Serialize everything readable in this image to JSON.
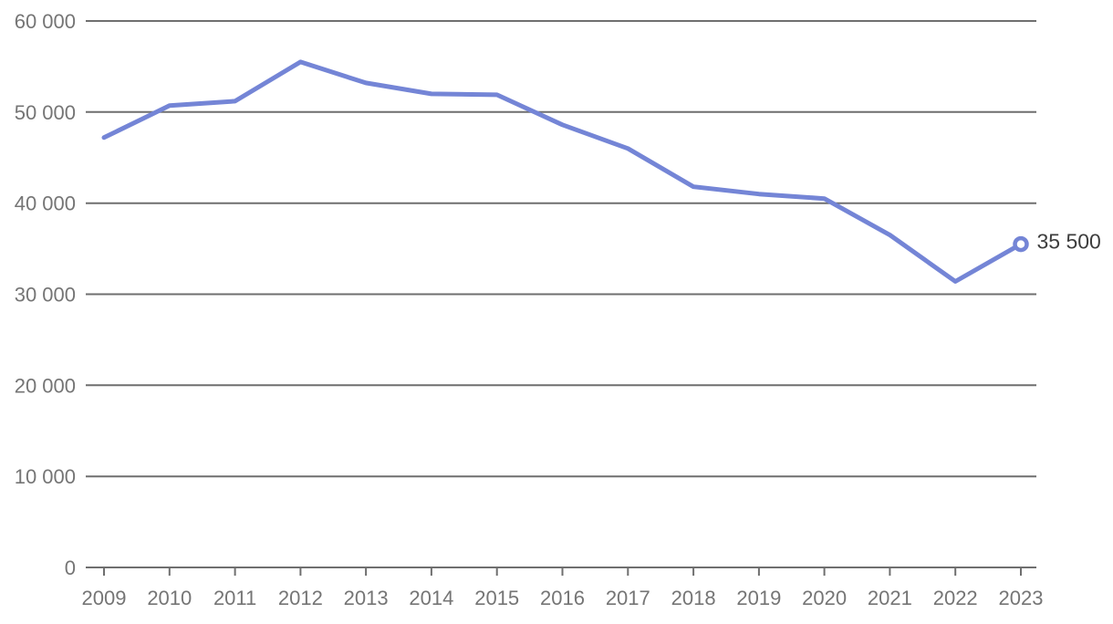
{
  "chart_data": {
    "type": "line",
    "title": "",
    "xlabel": "",
    "ylabel": "",
    "legend": "none",
    "grid": true,
    "categories": [
      "2009",
      "2010",
      "2011",
      "2012",
      "2013",
      "2014",
      "2015",
      "2016",
      "2017",
      "2018",
      "2019",
      "2020",
      "2021",
      "2022",
      "2023"
    ],
    "series": [
      {
        "name": "series-1",
        "values": [
          47200,
          50700,
          51200,
          55500,
          53200,
          52000,
          51900,
          48600,
          46000,
          41800,
          41000,
          40500,
          36500,
          31400,
          35500
        ]
      }
    ],
    "ylim": [
      0,
      60000
    ],
    "y_ticks": [
      {
        "value": 0,
        "label": "0"
      },
      {
        "value": 10000,
        "label": "10 000"
      },
      {
        "value": 20000,
        "label": "20 000"
      },
      {
        "value": 30000,
        "label": "30 000"
      },
      {
        "value": 40000,
        "label": "40 000"
      },
      {
        "value": 50000,
        "label": "50 000"
      },
      {
        "value": 60000,
        "label": "60 000"
      }
    ],
    "end_annotation": {
      "text": "35 500",
      "point_index": 14,
      "marker": "open-circle"
    },
    "colors": {
      "line": "#7485d6",
      "grid": "#6f6f6f",
      "axis_text": "#757575",
      "annotation_text": "#3d3d3d",
      "marker_fill": "#ffffff",
      "background": "#ffffff"
    }
  }
}
